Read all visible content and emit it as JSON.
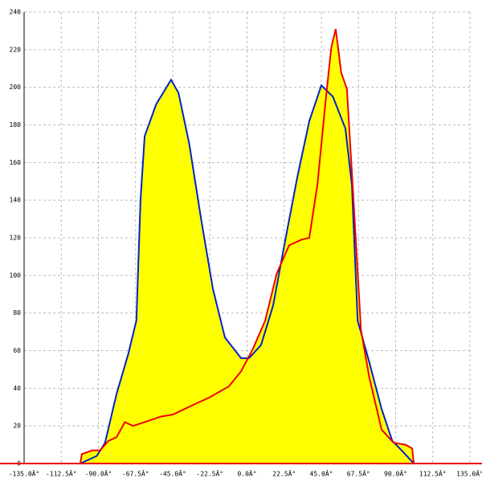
{
  "chart_data": {
    "type": "line",
    "fill": "#ffff00",
    "grid": true,
    "xlim": [
      -135,
      135
    ],
    "xticks": [
      {
        "value": -135,
        "label": "-135.0Â°"
      },
      {
        "value": -112.5,
        "label": "-112.5Â°"
      },
      {
        "value": -90,
        "label": "-90.0Â°"
      },
      {
        "value": -67.5,
        "label": "-67.5Â°"
      },
      {
        "value": -45,
        "label": "-45.0Â°"
      },
      {
        "value": -22.5,
        "label": "-22.5Â°"
      },
      {
        "value": 0,
        "label": "0.0Â°"
      },
      {
        "value": 22.5,
        "label": "22.5Â°"
      },
      {
        "value": 45,
        "label": "45.0Â°"
      },
      {
        "value": 67.5,
        "label": "67.5Â°"
      },
      {
        "value": 90,
        "label": "90.0Â°"
      },
      {
        "value": 112.5,
        "label": "112.5Â°"
      },
      {
        "value": 135,
        "label": "135.0Â°"
      }
    ],
    "ylim": [
      0,
      240
    ],
    "yticks": [
      0,
      20,
      40,
      60,
      80,
      100,
      120,
      140,
      160,
      180,
      200,
      220,
      240
    ],
    "series": [
      {
        "color": "#0022cc",
        "x": [
          -101,
          -91,
          -86,
          -79,
          -72,
          -67,
          -64.5,
          -62,
          -55,
          -46,
          -41.5,
          -35,
          -28,
          -20.7,
          -13.4,
          -3.6,
          1.2,
          8.5,
          15.8,
          23,
          30.4,
          37.7,
          45,
          52,
          59.6,
          63.5,
          67,
          74,
          81.5,
          88,
          93.6,
          101
        ],
        "values": [
          0,
          4,
          11,
          37,
          58,
          76,
          140,
          174,
          191,
          204,
          197,
          170,
          131,
          93,
          67,
          56,
          56,
          63,
          84,
          118,
          152,
          182,
          201,
          195,
          178,
          148,
          76,
          54,
          29,
          12,
          7,
          0
        ]
      },
      {
        "color": "#ee0000",
        "x": [
          -101,
          -100,
          -93.6,
          -89,
          -84,
          -79,
          -74,
          -69,
          -62,
          -52,
          -45,
          -33,
          -23,
          -11,
          -3.6,
          3.6,
          11,
          18,
          25.5,
          33,
          37.7,
          42.6,
          47.4,
          51,
          53.7,
          57,
          60.5,
          64.5,
          69,
          74,
          81.5,
          88.8,
          96,
          100,
          101
        ],
        "values": [
          0,
          5,
          7,
          7,
          12,
          14,
          22,
          20,
          22,
          25,
          26,
          31,
          35,
          41,
          49,
          61,
          76,
          101,
          116,
          119,
          120,
          148,
          191,
          221,
          231,
          208,
          199,
          140,
          71,
          46,
          18,
          11,
          10,
          8,
          0
        ]
      }
    ]
  }
}
